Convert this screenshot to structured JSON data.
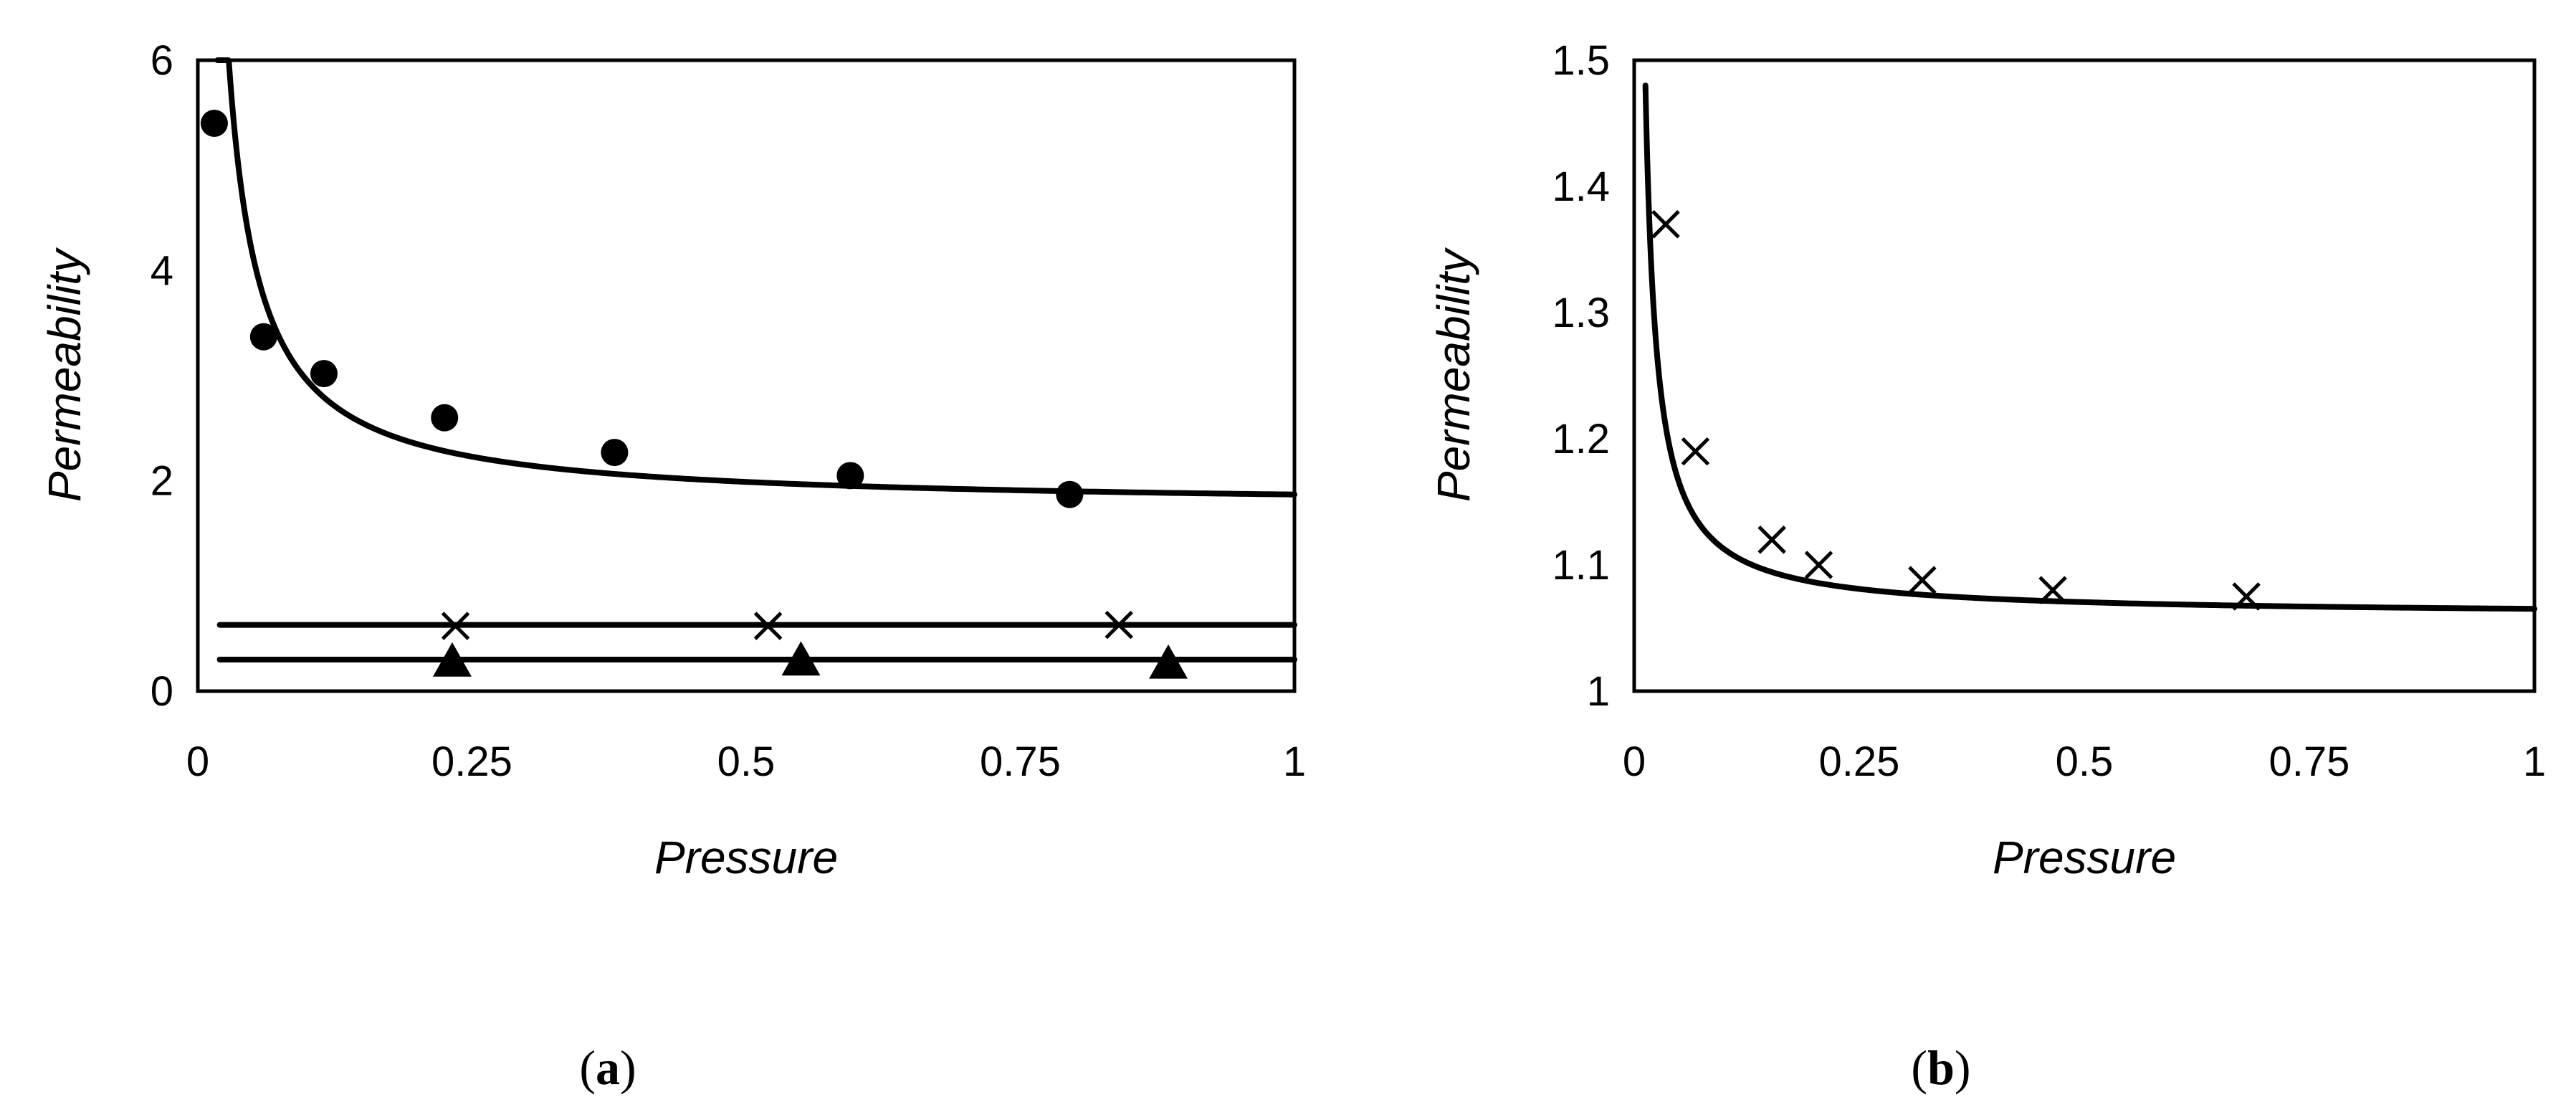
{
  "chart_data": [
    {
      "type": "scatter",
      "panel": "(a)",
      "caption_open": "(",
      "caption_letter": "a",
      "caption_close": ")",
      "xlabel": "Pressure",
      "ylabel": "Permeability",
      "xlim": [
        0,
        1
      ],
      "ylim": [
        0,
        6
      ],
      "xticks": [
        0,
        0.25,
        0.5,
        0.75,
        1
      ],
      "xtick_labels": [
        "0",
        "0.25",
        "0.5",
        "0.75",
        "1"
      ],
      "yticks": [
        0,
        2,
        4,
        6
      ],
      "ytick_labels": [
        "0",
        "2",
        "4",
        "6"
      ],
      "grid": false,
      "legend": "none",
      "series": [
        {
          "name": "circles",
          "marker": "circle",
          "points": [
            [
              0.015,
              5.4
            ],
            [
              0.06,
              3.37
            ],
            [
              0.115,
              3.02
            ],
            [
              0.225,
              2.6
            ],
            [
              0.38,
              2.27
            ],
            [
              0.595,
              2.05
            ],
            [
              0.795,
              1.87
            ]
          ]
        },
        {
          "name": "circle fit",
          "line": true,
          "model": "a + b/x",
          "a": 1.75,
          "b": 0.12,
          "x_from": 0.018,
          "x_to": 1.0
        },
        {
          "name": "crosses",
          "marker": "x",
          "points": [
            [
              0.235,
              0.62
            ],
            [
              0.52,
              0.62
            ],
            [
              0.84,
              0.63
            ]
          ]
        },
        {
          "name": "cross fit",
          "line": true,
          "model": "constant",
          "value": 0.63,
          "x_from": 0.02,
          "x_to": 1.0
        },
        {
          "name": "triangles",
          "marker": "triangle",
          "points": [
            [
              0.232,
              0.27
            ],
            [
              0.55,
              0.28
            ],
            [
              0.885,
              0.25
            ]
          ]
        },
        {
          "name": "triangle fit",
          "line": true,
          "model": "constant",
          "value": 0.3,
          "x_from": 0.02,
          "x_to": 1.0
        }
      ]
    },
    {
      "type": "scatter",
      "panel": "(b)",
      "caption_open": "(",
      "caption_letter": "b",
      "caption_close": ")",
      "xlabel": "Pressure",
      "ylabel": "Permeability",
      "xlim": [
        0,
        1
      ],
      "ylim": [
        1,
        1.5
      ],
      "xticks": [
        0,
        0.25,
        0.5,
        0.75,
        1
      ],
      "xtick_labels": [
        "0",
        "0.25",
        "0.5",
        "0.75",
        "1"
      ],
      "yticks": [
        1,
        1.1,
        1.2,
        1.3,
        1.4,
        1.5
      ],
      "ytick_labels": [
        "1",
        "1.1",
        "1.2",
        "1.3",
        "1.4",
        "1.5"
      ],
      "grid": false,
      "legend": "none",
      "series": [
        {
          "name": "crosses",
          "marker": "x",
          "points": [
            [
              0.035,
              1.37
            ],
            [
              0.068,
              1.19
            ],
            [
              0.153,
              1.12
            ],
            [
              0.205,
              1.1
            ],
            [
              0.32,
              1.088
            ],
            [
              0.465,
              1.08
            ],
            [
              0.68,
              1.075
            ]
          ]
        },
        {
          "name": "fit",
          "line": true,
          "model": "a + b/x",
          "a": 1.06,
          "b": 0.00525,
          "x_from": 0.0125,
          "x_to": 1.0
        }
      ]
    }
  ]
}
